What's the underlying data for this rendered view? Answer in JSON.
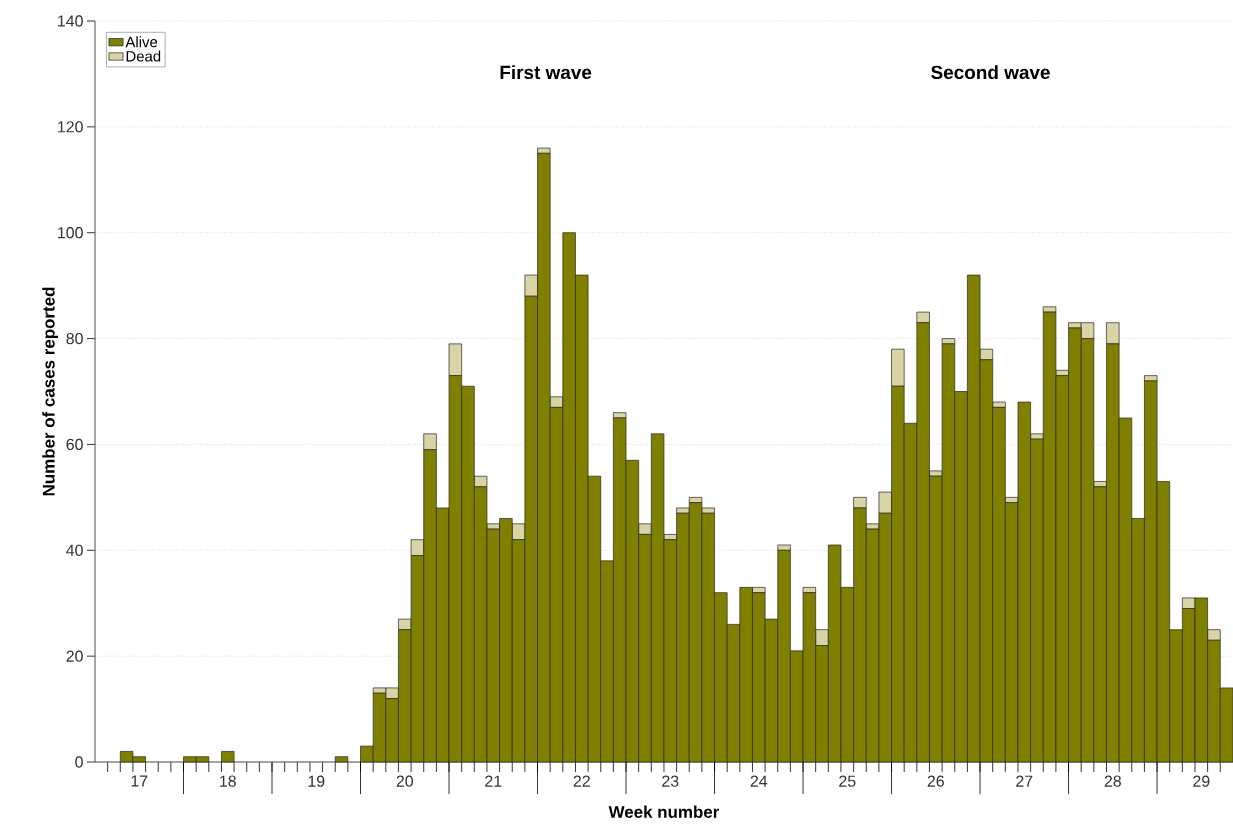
{
  "chart_data": {
    "type": "bar",
    "stacked": true,
    "xlabel": "Week number",
    "ylabel": "Number of cases reported",
    "annotations": [
      "First wave",
      "Second wave"
    ],
    "categories": [
      null,
      null,
      null,
      "17",
      null,
      null,
      null,
      null,
      null,
      null,
      "18",
      null,
      null,
      null,
      null,
      null,
      null,
      "19",
      null,
      null,
      null,
      null,
      null,
      null,
      "20",
      null,
      null,
      null,
      null,
      null,
      null,
      "21",
      null,
      null,
      null,
      null,
      null,
      null,
      "22",
      null,
      null,
      null,
      null,
      null,
      null,
      "23",
      null,
      null,
      null,
      null,
      null,
      null,
      "24",
      null,
      null,
      null,
      null,
      null,
      null,
      "25",
      null,
      null,
      null,
      null,
      null,
      null,
      "26",
      null,
      null,
      null,
      null,
      null,
      null,
      "27",
      null,
      null,
      null,
      null,
      null,
      null,
      "28",
      null,
      null,
      null,
      null,
      null,
      null,
      "29",
      null,
      null
    ],
    "series": [
      {
        "name": "Alive",
        "color": "#808000",
        "values": [
          0,
          0,
          2,
          1,
          0,
          0,
          0,
          1,
          1,
          0,
          2,
          0,
          0,
          0,
          0,
          0,
          0,
          0,
          0,
          1,
          0,
          3,
          13,
          12,
          25,
          39,
          59,
          48,
          73,
          71,
          52,
          44,
          46,
          42,
          88,
          115,
          67,
          100,
          92,
          54,
          38,
          65,
          57,
          43,
          62,
          42,
          47,
          49,
          47,
          32,
          26,
          33,
          32,
          27,
          40,
          21,
          32,
          22,
          41,
          33,
          48,
          44,
          47,
          71,
          64,
          83,
          54,
          79,
          70,
          92,
          76,
          67,
          49,
          68,
          61,
          85,
          73,
          82,
          80,
          52,
          79,
          65,
          46,
          72,
          53,
          25,
          29,
          31,
          23,
          14
        ]
      },
      {
        "name": "Dead",
        "color": "#d9d4a6",
        "values": [
          0,
          0,
          0,
          0,
          0,
          0,
          0,
          0,
          0,
          0,
          0,
          0,
          0,
          0,
          0,
          0,
          0,
          0,
          0,
          0,
          0,
          0,
          1,
          2,
          2,
          3,
          3,
          0,
          6,
          0,
          2,
          1,
          0,
          3,
          4,
          1,
          2,
          0,
          0,
          0,
          0,
          1,
          0,
          2,
          0,
          1,
          1,
          1,
          1,
          0,
          0,
          0,
          1,
          0,
          1,
          0,
          1,
          3,
          0,
          0,
          2,
          1,
          4,
          7,
          0,
          2,
          1,
          1,
          0,
          0,
          2,
          1,
          1,
          0,
          1,
          1,
          1,
          1,
          3,
          1,
          4,
          0,
          0,
          1,
          0,
          0,
          2,
          0,
          2,
          0
        ]
      }
    ],
    "ylim": [
      0,
      140
    ],
    "yticks": [
      0,
      20,
      40,
      60,
      80,
      100,
      120,
      140
    ],
    "grid": "y",
    "legend": "top left"
  }
}
